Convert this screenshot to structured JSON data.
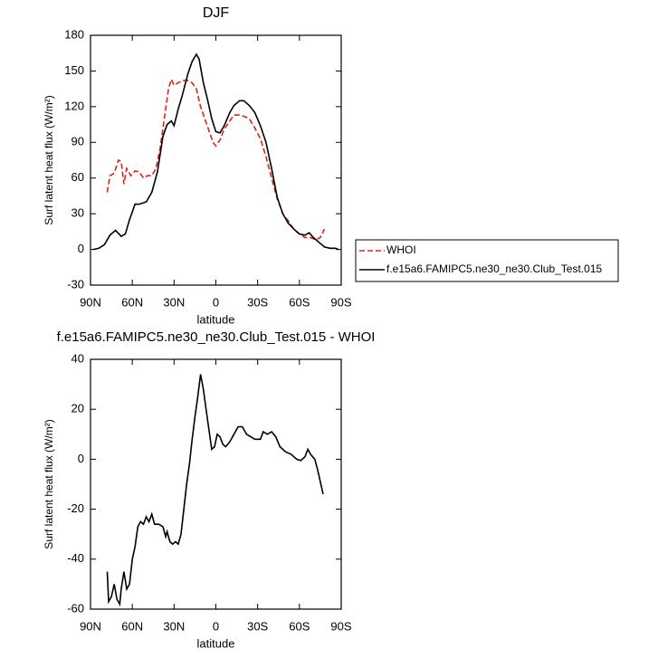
{
  "chart_data": [
    {
      "type": "line",
      "title": "DJF",
      "xlabel": "latitude",
      "ylabel": "Surf latent heat flux (W/m²)",
      "xlim": [
        90,
        -90
      ],
      "ylim": [
        -30,
        180
      ],
      "xticks": [
        {
          "value": 90,
          "label": "90N"
        },
        {
          "value": 60,
          "label": "60N"
        },
        {
          "value": 30,
          "label": "30N"
        },
        0,
        {
          "value": -30,
          "label": "30S"
        },
        {
          "value": -60,
          "label": "60S"
        },
        {
          "value": -90,
          "label": "90S"
        }
      ],
      "yticks": [
        -30,
        0,
        30,
        60,
        90,
        120,
        150,
        180
      ],
      "legend": "outside-right",
      "series": [
        {
          "name": "WHOI",
          "color": "#e0201b",
          "linestyle": "dashed",
          "x": [
            78,
            76,
            73,
            70,
            68,
            66,
            64,
            61,
            58,
            55,
            52,
            49,
            46,
            43,
            40,
            37,
            34,
            32,
            30,
            27,
            24,
            20,
            17,
            14,
            11,
            8,
            5,
            2,
            0,
            -3,
            -6,
            -10,
            -13,
            -17,
            -20,
            -24,
            -28,
            -32,
            -36,
            -40,
            -44,
            -48,
            -52,
            -56,
            -60,
            -64,
            -68,
            -72,
            -75,
            -78
          ],
          "values": [
            48,
            62,
            64,
            75,
            74,
            55,
            68,
            62,
            66,
            65,
            60,
            62,
            62,
            68,
            85,
            110,
            135,
            143,
            138,
            140,
            142,
            142,
            140,
            135,
            120,
            110,
            100,
            90,
            87,
            92,
            101,
            108,
            113,
            113,
            112,
            110,
            102,
            93,
            78,
            60,
            43,
            30,
            24,
            17,
            13,
            10,
            10,
            8,
            10,
            17
          ]
        },
        {
          "name": "f.e15a6.FAMIPC5.ne30_ne30.Club_Test.015",
          "color": "#000000",
          "linestyle": "solid",
          "x": [
            88,
            84,
            80,
            76,
            72,
            68,
            65,
            62,
            58,
            55,
            50,
            46,
            42,
            38,
            35,
            32,
            30,
            27,
            24,
            20,
            17,
            14,
            12,
            9,
            6,
            3,
            0,
            -3,
            -6,
            -10,
            -13,
            -17,
            -20,
            -24,
            -28,
            -32,
            -36,
            -40,
            -44,
            -48,
            -52,
            -56,
            -60,
            -64,
            -67,
            -70,
            -74,
            -78,
            -82,
            -86,
            -88
          ],
          "values": [
            0,
            1,
            4,
            12,
            16,
            11,
            13,
            25,
            38,
            38,
            40,
            48,
            65,
            95,
            105,
            108,
            104,
            118,
            130,
            148,
            158,
            164,
            160,
            140,
            126,
            110,
            99,
            98,
            104,
            115,
            121,
            125,
            125,
            121,
            115,
            104,
            90,
            68,
            44,
            30,
            22,
            17,
            13,
            12,
            14,
            10,
            6,
            2,
            1,
            1,
            0
          ]
        }
      ]
    },
    {
      "type": "line",
      "title": "f.e15a6.FAMIPC5.ne30_ne30.Club_Test.015 - WHOI",
      "xlabel": "latitude",
      "ylabel": "Surf latent heat flux (W/m²)",
      "xlim": [
        90,
        -90
      ],
      "ylim": [
        -60,
        40
      ],
      "xticks": [
        {
          "value": 90,
          "label": "90N"
        },
        {
          "value": 60,
          "label": "60N"
        },
        {
          "value": 30,
          "label": "30N"
        },
        0,
        {
          "value": -30,
          "label": "30S"
        },
        {
          "value": -60,
          "label": "60S"
        },
        {
          "value": -90,
          "label": "90S"
        }
      ],
      "yticks": [
        -60,
        -40,
        -20,
        0,
        20,
        40
      ],
      "series": [
        {
          "color": "#000000",
          "linestyle": "solid",
          "x": [
            78,
            77,
            75,
            73,
            71,
            69,
            68,
            66,
            64,
            62,
            60,
            58,
            56,
            54,
            52,
            50,
            48,
            46,
            44,
            41,
            38,
            36,
            35,
            33,
            31,
            29,
            27,
            25,
            23,
            21,
            19,
            17,
            15,
            13,
            11,
            9,
            7,
            5,
            3,
            1,
            -1,
            -3,
            -5,
            -7,
            -10,
            -13,
            -16,
            -19,
            -22,
            -25,
            -28,
            -32,
            -34,
            -37,
            -40,
            -43,
            -46,
            -50,
            -54,
            -58,
            -61,
            -64,
            -66,
            -68,
            -71,
            -73,
            -75,
            -77
          ],
          "values": [
            -45,
            -57,
            -55,
            -50,
            -56,
            -58,
            -52,
            -45,
            -52,
            -50,
            -40,
            -35,
            -27,
            -25,
            -26,
            -23,
            -25,
            -22,
            -26,
            -26,
            -27,
            -31,
            -29,
            -33,
            -34,
            -33,
            -34,
            -30,
            -20,
            -10,
            -2,
            8,
            17,
            25,
            34,
            28,
            20,
            12,
            4,
            5,
            10,
            9,
            6,
            5,
            7,
            10,
            13,
            13,
            10,
            9,
            8,
            8,
            11,
            10,
            11,
            9,
            5,
            3,
            2,
            0,
            -0.5,
            1,
            4,
            2,
            0,
            -4,
            -9,
            -14
          ]
        }
      ]
    }
  ]
}
